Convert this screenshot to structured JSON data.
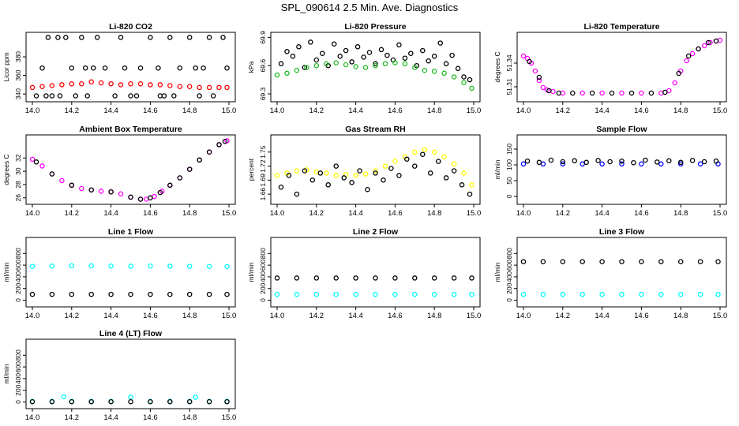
{
  "page_title": "SPL_090614  2.5 Min. Ave. Diagnostics",
  "colors": {
    "black": "#000000",
    "red": "#ff0000",
    "green": "#22bb22",
    "magenta": "#ff00ff",
    "yellow": "#ffff00",
    "blue": "#0000ff",
    "cyan": "#00ffff"
  },
  "chart_data": [
    {
      "type": "scatter",
      "title": "Li-820 CO2",
      "ylabel": "Licor ppm",
      "xticks": [
        "14.0",
        "14.2",
        "14.4",
        "14.6",
        "14.8",
        "15.0"
      ],
      "yticks": [
        "340",
        "360",
        "380"
      ],
      "xlim": [
        14.0,
        15.0
      ],
      "ylim": [
        335,
        403
      ],
      "series": [
        {
          "color": "black",
          "x": [
            14.05,
            14.08,
            14.1,
            14.13,
            14.17,
            14.2,
            14.25,
            14.28,
            14.33,
            14.37,
            14.45,
            14.5,
            14.55,
            14.6,
            14.65,
            14.7,
            14.75,
            14.8,
            14.85,
            14.9,
            14.97,
            14.02,
            14.14,
            14.22,
            14.31,
            14.42,
            14.53,
            14.64,
            14.72,
            14.83,
            14.92,
            14.99,
            14.07,
            14.27,
            14.47,
            14.67,
            14.87
          ],
          "y": [
            368,
            401,
            338,
            401,
            401,
            368,
            401,
            338,
            401,
            368,
            401,
            338,
            368,
            401,
            338,
            401,
            368,
            401,
            338,
            401,
            401,
            338,
            338,
            338,
            368,
            338,
            338,
            368,
            338,
            368,
            338,
            368,
            338,
            368,
            368,
            338,
            368
          ]
        },
        {
          "color": "red",
          "x": [
            14.0,
            14.05,
            14.1,
            14.15,
            14.2,
            14.25,
            14.3,
            14.35,
            14.4,
            14.45,
            14.5,
            14.55,
            14.6,
            14.65,
            14.7,
            14.75,
            14.8,
            14.85,
            14.9,
            14.95,
            14.99
          ],
          "y": [
            347,
            348,
            349,
            350,
            351,
            351,
            353,
            352,
            351,
            350,
            351,
            351,
            350,
            350,
            349,
            348,
            348,
            347,
            347,
            347,
            347
          ]
        }
      ]
    },
    {
      "type": "scatter",
      "title": "Li-820 Pressure",
      "ylabel": "kPa",
      "xticks": [
        "14.0",
        "14.2",
        "14.4",
        "14.6",
        "14.8",
        "15.0"
      ],
      "yticks": [
        "69.3",
        "69.6",
        "69.9"
      ],
      "xlim": [
        14.0,
        15.0
      ],
      "ylim": [
        69.25,
        69.92
      ],
      "series": [
        {
          "color": "black",
          "x": [
            14.02,
            14.05,
            14.08,
            14.11,
            14.14,
            14.17,
            14.2,
            14.23,
            14.26,
            14.29,
            14.32,
            14.35,
            14.38,
            14.41,
            14.44,
            14.47,
            14.5,
            14.53,
            14.56,
            14.59,
            14.62,
            14.65,
            14.68,
            14.71,
            14.74,
            14.77,
            14.8,
            14.83,
            14.86,
            14.89,
            14.92,
            14.95,
            14.98
          ],
          "y": [
            69.62,
            69.75,
            69.7,
            69.8,
            69.58,
            69.85,
            69.66,
            69.73,
            69.6,
            69.83,
            69.7,
            69.76,
            69.64,
            69.8,
            69.69,
            69.74,
            69.62,
            69.77,
            69.71,
            69.66,
            69.82,
            69.68,
            69.73,
            69.6,
            69.76,
            69.65,
            69.7,
            69.84,
            69.62,
            69.71,
            69.57,
            69.48,
            69.45
          ]
        },
        {
          "color": "green",
          "x": [
            14.0,
            14.05,
            14.1,
            14.15,
            14.2,
            14.25,
            14.3,
            14.35,
            14.4,
            14.45,
            14.5,
            14.55,
            14.6,
            14.65,
            14.7,
            14.75,
            14.8,
            14.85,
            14.9,
            14.95,
            14.99
          ],
          "y": [
            69.5,
            69.52,
            69.55,
            69.58,
            69.6,
            69.62,
            69.63,
            69.61,
            69.59,
            69.58,
            69.6,
            69.62,
            69.63,
            69.62,
            69.58,
            69.55,
            69.54,
            69.52,
            69.48,
            69.42,
            69.36
          ]
        }
      ]
    },
    {
      "type": "scatter",
      "title": "Li-820 Temperature",
      "ylabel": "degrees C",
      "xticks": [
        "14.0",
        "14.2",
        "14.4",
        "14.6",
        "14.8",
        "15.0"
      ],
      "yticks": [
        "51.31",
        "51.34"
      ],
      "xlim": [
        14.0,
        15.0
      ],
      "ylim": [
        51.295,
        51.375
      ],
      "series": [
        {
          "color": "magenta",
          "x": [
            14.0,
            14.02,
            14.04,
            14.06,
            14.08,
            14.1,
            14.12,
            14.15,
            14.2,
            14.3,
            14.4,
            14.5,
            14.6,
            14.7,
            14.74,
            14.77,
            14.8,
            14.83,
            14.86,
            14.89,
            14.92,
            14.95,
            14.98,
            15.0
          ],
          "y": [
            51.349,
            51.346,
            51.34,
            51.33,
            51.318,
            51.309,
            51.306,
            51.304,
            51.302,
            51.302,
            51.302,
            51.302,
            51.302,
            51.302,
            51.305,
            51.315,
            51.33,
            51.343,
            51.352,
            51.358,
            51.362,
            51.366,
            51.368,
            51.369
          ]
        },
        {
          "color": "black",
          "x": [
            14.03,
            14.08,
            14.13,
            14.18,
            14.25,
            14.35,
            14.45,
            14.55,
            14.65,
            14.72,
            14.79,
            14.84,
            14.89,
            14.94,
            14.98
          ],
          "y": [
            51.342,
            51.322,
            51.305,
            51.302,
            51.302,
            51.302,
            51.302,
            51.302,
            51.302,
            51.303,
            51.327,
            51.349,
            51.358,
            51.366,
            51.368
          ]
        }
      ]
    },
    {
      "type": "scatter",
      "title": "Ambient Box Temperature",
      "ylabel": "degrees C",
      "xticks": [
        "14.0",
        "14.2",
        "14.4",
        "14.6",
        "14.8",
        "15.0"
      ],
      "yticks": [
        "26",
        "28",
        "30",
        "32"
      ],
      "xlim": [
        14.0,
        15.0
      ],
      "ylim": [
        25.5,
        35.0
      ],
      "series": [
        {
          "color": "magenta",
          "x": [
            14.0,
            14.05,
            14.1,
            14.15,
            14.2,
            14.25,
            14.3,
            14.35,
            14.4,
            14.45,
            14.5,
            14.55,
            14.58,
            14.62,
            14.66,
            14.7,
            14.75,
            14.8,
            14.85,
            14.9,
            14.95,
            14.99
          ],
          "y": [
            31.8,
            30.8,
            29.6,
            28.6,
            27.9,
            27.4,
            27.2,
            27.0,
            26.9,
            26.6,
            26.1,
            25.8,
            25.8,
            26.2,
            27.0,
            27.9,
            29.0,
            30.3,
            31.7,
            32.9,
            34.0,
            34.6
          ]
        },
        {
          "color": "black",
          "x": [
            14.02,
            14.1,
            14.2,
            14.3,
            14.4,
            14.5,
            14.55,
            14.6,
            14.65,
            14.7,
            14.75,
            14.8,
            14.85,
            14.9,
            14.95,
            14.98
          ],
          "y": [
            31.4,
            29.6,
            27.9,
            27.2,
            26.9,
            26.1,
            25.8,
            26.0,
            26.8,
            27.9,
            29.0,
            30.3,
            31.7,
            32.9,
            34.0,
            34.5
          ]
        }
      ]
    },
    {
      "type": "scatter",
      "title": "Gas Stream RH",
      "ylabel": "percent",
      "xticks": [
        "14.0",
        "14.2",
        "14.4",
        "14.6",
        "14.8",
        "15.0"
      ],
      "yticks": [
        "1.66",
        "1.69",
        "1.72",
        "1.75"
      ],
      "xlim": [
        14.0,
        15.0
      ],
      "ylim": [
        1.645,
        1.78
      ],
      "series": [
        {
          "color": "yellow",
          "x": [
            14.0,
            14.05,
            14.1,
            14.15,
            14.2,
            14.25,
            14.3,
            14.35,
            14.4,
            14.45,
            14.5,
            14.55,
            14.6,
            14.65,
            14.7,
            14.75,
            14.8,
            14.85,
            14.9,
            14.95,
            14.99
          ],
          "y": [
            1.7,
            1.705,
            1.71,
            1.712,
            1.708,
            1.705,
            1.7,
            1.702,
            1.7,
            1.703,
            1.71,
            1.72,
            1.73,
            1.74,
            1.75,
            1.755,
            1.75,
            1.74,
            1.725,
            1.705,
            1.68
          ]
        },
        {
          "color": "black",
          "x": [
            14.02,
            14.06,
            14.1,
            14.14,
            14.18,
            14.22,
            14.26,
            14.3,
            14.34,
            14.38,
            14.42,
            14.46,
            14.5,
            14.54,
            14.58,
            14.62,
            14.66,
            14.7,
            14.74,
            14.78,
            14.82,
            14.86,
            14.9,
            14.94,
            14.98
          ],
          "y": [
            1.675,
            1.7,
            1.66,
            1.71,
            1.69,
            1.705,
            1.68,
            1.72,
            1.695,
            1.685,
            1.71,
            1.67,
            1.705,
            1.69,
            1.715,
            1.7,
            1.735,
            1.72,
            1.745,
            1.705,
            1.73,
            1.695,
            1.71,
            1.68,
            1.66
          ]
        }
      ]
    },
    {
      "type": "scatter",
      "title": "Sample Flow",
      "ylabel": "ml/min",
      "xticks": [
        "14.0",
        "14.2",
        "14.4",
        "14.6",
        "14.8",
        "15.0"
      ],
      "yticks": [
        "0",
        "50",
        "100",
        "150"
      ],
      "xlim": [
        14.0,
        15.0
      ],
      "ylim": [
        -15,
        185
      ],
      "series": [
        {
          "color": "blue",
          "x": [
            14.0,
            14.1,
            14.2,
            14.3,
            14.4,
            14.5,
            14.6,
            14.7,
            14.8,
            14.9,
            14.99
          ],
          "y": [
            103,
            103,
            103,
            103,
            103,
            103,
            103,
            103,
            103,
            103,
            103
          ]
        },
        {
          "color": "black",
          "x": [
            14.02,
            14.08,
            14.14,
            14.2,
            14.26,
            14.32,
            14.38,
            14.44,
            14.5,
            14.56,
            14.62,
            14.68,
            14.74,
            14.8,
            14.86,
            14.92,
            14.98
          ],
          "y": [
            112,
            108,
            115,
            110,
            113,
            108,
            114,
            110,
            112,
            107,
            115,
            109,
            113,
            108,
            114,
            110,
            112
          ]
        }
      ]
    },
    {
      "type": "scatter",
      "title": "Line 1 Flow",
      "ylabel": "ml/min",
      "xticks": [
        "14.0",
        "14.2",
        "14.4",
        "14.6",
        "14.8",
        "15.0"
      ],
      "yticks": [
        "0",
        "200",
        "400",
        "600",
        "800"
      ],
      "xlim": [
        14.0,
        15.0
      ],
      "ylim": [
        -60,
        1020
      ],
      "series": [
        {
          "color": "cyan",
          "x": [
            14.0,
            14.1,
            14.2,
            14.3,
            14.4,
            14.5,
            14.6,
            14.7,
            14.8,
            14.9,
            14.99
          ],
          "y": [
            580,
            585,
            590,
            588,
            585,
            583,
            585,
            582,
            580,
            578,
            575
          ]
        },
        {
          "color": "black",
          "x": [
            14.0,
            14.1,
            14.2,
            14.3,
            14.4,
            14.5,
            14.6,
            14.7,
            14.8,
            14.9,
            14.99
          ],
          "y": [
            100,
            100,
            100,
            100,
            100,
            100,
            100,
            100,
            100,
            100,
            100
          ]
        }
      ]
    },
    {
      "type": "scatter",
      "title": "Line 2 Flow",
      "ylabel": "ml/min",
      "xticks": [
        "14.0",
        "14.2",
        "14.4",
        "14.6",
        "14.8",
        "15.0"
      ],
      "yticks": [
        "0",
        "200",
        "400",
        "600",
        "800"
      ],
      "xlim": [
        14.0,
        15.0
      ],
      "ylim": [
        -60,
        1020
      ],
      "series": [
        {
          "color": "cyan",
          "x": [
            14.0,
            14.1,
            14.2,
            14.3,
            14.4,
            14.5,
            14.6,
            14.7,
            14.8,
            14.9,
            14.99
          ],
          "y": [
            100,
            100,
            100,
            100,
            100,
            100,
            100,
            100,
            100,
            100,
            100
          ]
        },
        {
          "color": "black",
          "x": [
            14.0,
            14.1,
            14.2,
            14.3,
            14.4,
            14.5,
            14.6,
            14.7,
            14.8,
            14.9,
            14.99
          ],
          "y": [
            380,
            380,
            380,
            380,
            380,
            380,
            380,
            380,
            380,
            380,
            380
          ]
        }
      ]
    },
    {
      "type": "scatter",
      "title": "Line 3 Flow",
      "ylabel": "ml/min",
      "xticks": [
        "14.0",
        "14.2",
        "14.4",
        "14.6",
        "14.8",
        "15.0"
      ],
      "yticks": [
        "0",
        "200",
        "400",
        "600",
        "800"
      ],
      "xlim": [
        14.0,
        15.0
      ],
      "ylim": [
        -60,
        1020
      ],
      "series": [
        {
          "color": "cyan",
          "x": [
            14.0,
            14.1,
            14.2,
            14.3,
            14.4,
            14.5,
            14.6,
            14.7,
            14.8,
            14.9,
            14.99
          ],
          "y": [
            100,
            100,
            100,
            100,
            100,
            100,
            100,
            100,
            100,
            100,
            100
          ]
        },
        {
          "color": "black",
          "x": [
            14.0,
            14.1,
            14.2,
            14.3,
            14.4,
            14.5,
            14.6,
            14.7,
            14.8,
            14.9,
            14.99
          ],
          "y": [
            660,
            660,
            660,
            660,
            660,
            660,
            660,
            660,
            660,
            660,
            660
          ]
        }
      ]
    },
    {
      "type": "scatter",
      "title": "Line 4 (LT) Flow",
      "ylabel": "ml/min",
      "xticks": [
        "14.0",
        "14.2",
        "14.4",
        "14.6",
        "14.8",
        "15.0"
      ],
      "yticks": [
        "0",
        "200",
        "400",
        "600",
        "800"
      ],
      "xlim": [
        14.0,
        15.0
      ],
      "ylim": [
        -60,
        1020
      ],
      "series": [
        {
          "color": "cyan",
          "x": [
            14.0,
            14.1,
            14.16,
            14.2,
            14.3,
            14.4,
            14.5,
            14.6,
            14.7,
            14.8,
            14.83,
            14.9,
            14.99
          ],
          "y": [
            10,
            10,
            90,
            10,
            10,
            10,
            80,
            10,
            10,
            10,
            80,
            10,
            10
          ]
        },
        {
          "color": "black",
          "x": [
            14.0,
            14.1,
            14.2,
            14.3,
            14.4,
            14.5,
            14.6,
            14.7,
            14.8,
            14.9,
            14.99
          ],
          "y": [
            5,
            5,
            5,
            5,
            5,
            5,
            5,
            5,
            5,
            5,
            5
          ]
        }
      ]
    }
  ]
}
